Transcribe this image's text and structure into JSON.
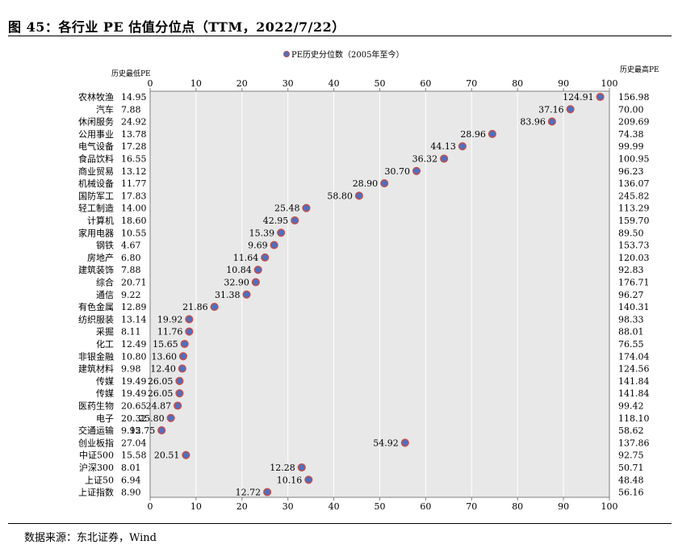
{
  "title": "图 45：各行业 PE 估值分位点（TTM，2022/7/22）",
  "source": "数据来源：东北证券，Wind",
  "chart_data": {
    "type": "scatter",
    "legend": "PE历史分位数（2005年至今）",
    "legend_position": "top-center",
    "left_header": "历史最低PE",
    "right_header": "历史最高PE",
    "xlim": [
      0,
      100
    ],
    "x_ticks": [
      0,
      10,
      20,
      30,
      40,
      50,
      60,
      70,
      80,
      90,
      100
    ],
    "grid": true,
    "colors": {
      "plot_bg": "#e8e8e8",
      "marker_fill": "#4f6ec0",
      "marker_edge": "#c0504d"
    },
    "rows": [
      {
        "name": "农林牧渔",
        "min": "14.95",
        "max": "156.98",
        "x": 98,
        "pe": "124.91"
      },
      {
        "name": "汽车",
        "min": "7.88",
        "max": "70.00",
        "x": 91.5,
        "pe": "37.16"
      },
      {
        "name": "休闲服务",
        "min": "24.92",
        "max": "209.69",
        "x": 87.5,
        "pe": "83.96"
      },
      {
        "name": "公用事业",
        "min": "13.78",
        "max": "74.38",
        "x": 74.5,
        "pe": "28.96"
      },
      {
        "name": "电气设备",
        "min": "17.28",
        "max": "99.99",
        "x": 68,
        "pe": "44.13"
      },
      {
        "name": "食品饮料",
        "min": "16.55",
        "max": "100.95",
        "x": 64,
        "pe": "36.32"
      },
      {
        "name": "商业贸易",
        "min": "13.12",
        "max": "96.23",
        "x": 58,
        "pe": "30.70"
      },
      {
        "name": "机械设备",
        "min": "11.77",
        "max": "136.07",
        "x": 51,
        "pe": "28.90"
      },
      {
        "name": "国防军工",
        "min": "17.83",
        "max": "245.82",
        "x": 45.5,
        "pe": "58.80"
      },
      {
        "name": "轻工制造",
        "min": "14.00",
        "max": "113.29",
        "x": 34,
        "pe": "25.48"
      },
      {
        "name": "计算机",
        "min": "18.60",
        "max": "159.70",
        "x": 31.5,
        "pe": "42.95"
      },
      {
        "name": "家用电器",
        "min": "10.55",
        "max": "89.50",
        "x": 28.5,
        "pe": "15.39"
      },
      {
        "name": "钢铁",
        "min": "4.67",
        "max": "153.73",
        "x": 27,
        "pe": "9.69"
      },
      {
        "name": "房地产",
        "min": "6.80",
        "max": "120.03",
        "x": 25,
        "pe": "11.64"
      },
      {
        "name": "建筑装饰",
        "min": "7.88",
        "max": "92.83",
        "x": 23.5,
        "pe": "10.84"
      },
      {
        "name": "综合",
        "min": "20.71",
        "max": "176.71",
        "x": 23,
        "pe": "32.90"
      },
      {
        "name": "通信",
        "min": "9.22",
        "max": "96.27",
        "x": 21,
        "pe": "31.38"
      },
      {
        "name": "有色金属",
        "min": "12.89",
        "max": "140.31",
        "x": 14,
        "pe": "21.86"
      },
      {
        "name": "纺织服装",
        "min": "13.14",
        "max": "98.33",
        "x": 8.5,
        "pe": "19.92"
      },
      {
        "name": "采掘",
        "min": "8.11",
        "max": "88.01",
        "x": 8.5,
        "pe": "11.76"
      },
      {
        "name": "化工",
        "min": "12.49",
        "max": "76.55",
        "x": 7.5,
        "pe": "15.65"
      },
      {
        "name": "非银金融",
        "min": "10.80",
        "max": "174.04",
        "x": 7.2,
        "pe": "13.60"
      },
      {
        "name": "建筑材料",
        "min": "9.98",
        "max": "124.56",
        "x": 7,
        "pe": "12.40"
      },
      {
        "name": "传媒",
        "min": "19.49",
        "max": "141.84",
        "x": 6.4,
        "pe": "26.05"
      },
      {
        "name": "传媒",
        "min": "19.49",
        "max": "141.84",
        "x": 6.4,
        "pe": "26.05"
      },
      {
        "name": "医药生物",
        "min": "20.65",
        "max": "99.42",
        "x": 6,
        "pe": "24.87"
      },
      {
        "name": "电子",
        "min": "20.32",
        "max": "118.10",
        "x": 4.5,
        "pe": "25.80"
      },
      {
        "name": "交通运输",
        "min": "9.95",
        "max": "58.62",
        "x": 2.5,
        "pe": "12.75"
      },
      {
        "name": "创业板指",
        "min": "27.04",
        "max": "137.86",
        "x": 55.5,
        "pe": "54.92"
      },
      {
        "name": "中证500",
        "min": "15.58",
        "max": "92.75",
        "x": 7.8,
        "pe": "20.51"
      },
      {
        "name": "沪深300",
        "min": "8.01",
        "max": "50.71",
        "x": 33,
        "pe": "12.28"
      },
      {
        "name": "上证50",
        "min": "6.94",
        "max": "48.48",
        "x": 34.5,
        "pe": "10.16"
      },
      {
        "name": "上证指数",
        "min": "8.90",
        "max": "56.16",
        "x": 25.5,
        "pe": "12.72"
      }
    ]
  }
}
